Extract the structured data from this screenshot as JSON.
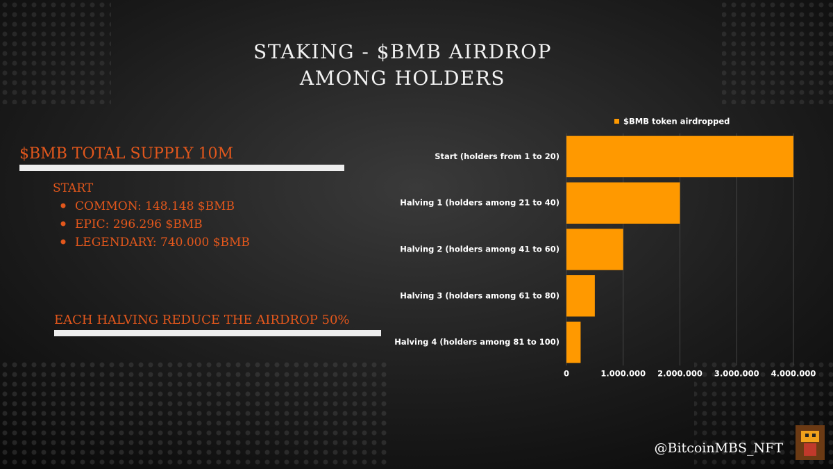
{
  "title": [
    "STAKING - $BMB AIRDROP",
    "AMONG HOLDERS"
  ],
  "supply": "$BMB TOTAL SUPPLY 10M",
  "start": {
    "heading": "START",
    "items": [
      "COMMON: 148.148 $BMB",
      "EPIC: 296.296 $BMB",
      "LEGENDARY: 740.000 $BMB"
    ]
  },
  "halving_note": "EACH HALVING REDUCE THE AIRDROP 50%",
  "handle": "@BitcoinMBS_NFT",
  "chart_data": {
    "type": "bar",
    "orientation": "horizontal",
    "categories": [
      "Start (holders from 1 to 20)",
      "Halving 1 (holders among 21 to 40)",
      "Halving 2 (holders among 41 to 60)",
      "Halving 3 (holders among 61 to 80)",
      "Halving 4 (holders among 81 to 100)"
    ],
    "series": [
      {
        "name": "$BMB token airdropped",
        "color": "#ff9900",
        "values": [
          4000000,
          2000000,
          1000000,
          500000,
          250000
        ]
      }
    ],
    "xlim": [
      0,
      4000000
    ],
    "xticks": [
      0,
      {
        "value": 1000000,
        "label": "1.000.000"
      },
      {
        "value": 2000000,
        "label": "2.000.000"
      },
      {
        "value": 3000000,
        "label": "3.000.000"
      },
      {
        "value": 4000000,
        "label": "4.000.000"
      }
    ],
    "grid": true,
    "legend": "top"
  }
}
